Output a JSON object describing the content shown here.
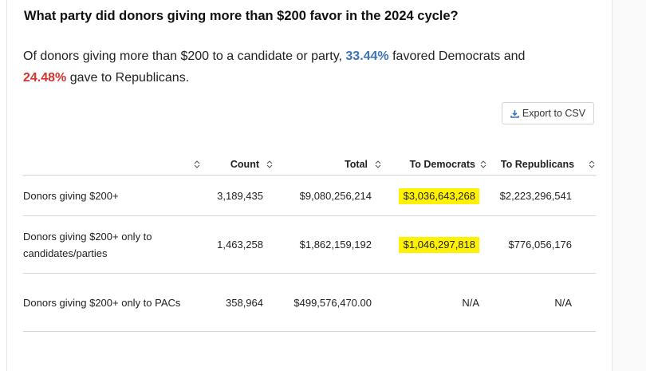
{
  "heading": "What party did donors giving more than $200 favor in the 2024 cycle?",
  "summary": {
    "part1": "Of donors giving more than $200 to a candidate or party, ",
    "dem_pct": "33.44%",
    "part2": " favored Democrats and",
    "rep_pct": "24.48%",
    "part3": " gave to Republicans."
  },
  "export_button": {
    "label": "Export to CSV",
    "icon": "download-icon"
  },
  "table": {
    "columns": [
      "",
      "Count",
      "Total",
      "To Democrats",
      "To Republicans"
    ],
    "rows": [
      {
        "label": "Donors giving $200+",
        "count": "3,189,435",
        "total": "$9,080,256,214",
        "dem": "$3,036,643,268",
        "rep": "$2,223,296,541"
      },
      {
        "label": "Donors giving $200+ only to candidates/parties",
        "count": "1,463,258",
        "total": "$1,862,159,192",
        "dem": "$1,046,297,818",
        "rep": "$776,056,176"
      },
      {
        "label": "Donors giving $200+ only to PACs",
        "count": "358,964",
        "total": "$499,576,470.00",
        "dem": "N/A",
        "rep": "N/A"
      }
    ],
    "highlighted_values": [
      "$3,036,643,268",
      "$1,046,297,818"
    ]
  },
  "colors": {
    "democrat": "#3d74b8",
    "republican": "#d7322d",
    "highlight": "#fff200"
  }
}
